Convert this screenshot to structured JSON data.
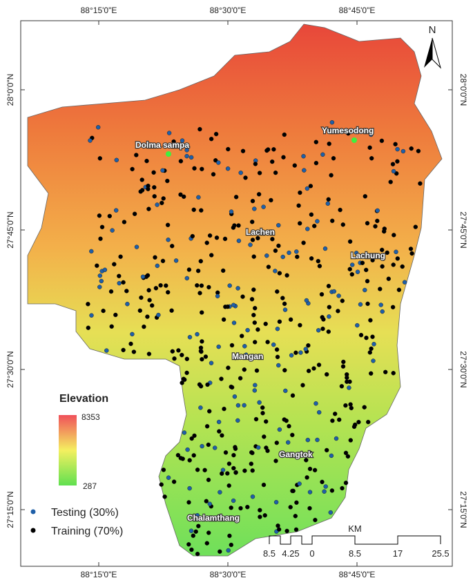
{
  "graticule": {
    "longitudes": [
      "88°15'0\"E",
      "88°30'0\"E",
      "88°45'0\"E"
    ],
    "latitudes": [
      "28°0'0\"N",
      "27°45'0\"N",
      "27°30'0\"N",
      "27°15'0\"N"
    ]
  },
  "north_arrow": "N",
  "places": [
    "Dolma sampa",
    "Yumesodong",
    "Lachen",
    "Lachung",
    "Mangan",
    "Gangtok",
    "Chalamthang"
  ],
  "legend": {
    "title": "Elevation",
    "max": 8353,
    "min": 287,
    "items": [
      {
        "label": "Testing (30%)",
        "color": "#1f5fa8"
      },
      {
        "label": "Training (70%)",
        "color": "#000000"
      }
    ]
  },
  "scale_bar": {
    "unit": "KM",
    "labels": [
      8.5,
      4.25,
      0,
      8.5,
      17,
      25.5
    ]
  }
}
